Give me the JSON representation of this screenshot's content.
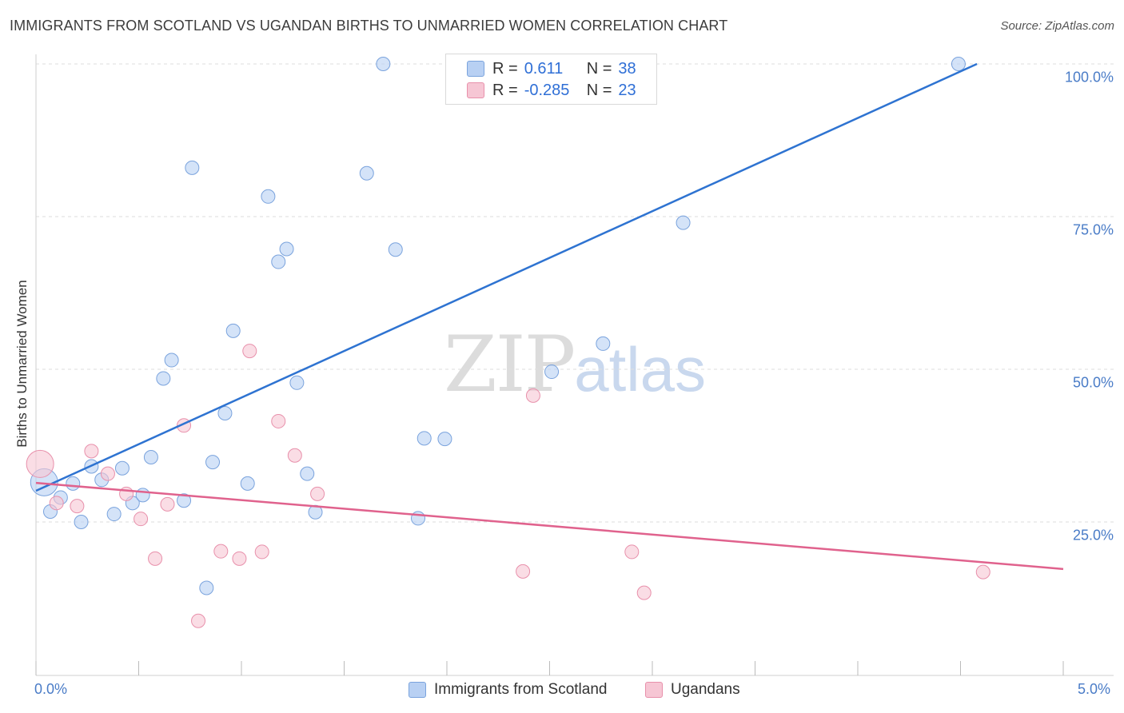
{
  "title": "IMMIGRANTS FROM SCOTLAND VS UGANDAN BIRTHS TO UNMARRIED WOMEN CORRELATION CHART",
  "source": "Source: ZipAtlas.com",
  "watermark": {
    "part1": "ZIP",
    "part2": "atlas"
  },
  "legend": {
    "rows": [
      {
        "r_label": "R =",
        "r_value": "0.611",
        "n_label": "N =",
        "n_value": "38"
      },
      {
        "r_label": "R =",
        "r_value": "-0.285",
        "n_label": "N =",
        "n_value": "23"
      }
    ]
  },
  "colors": {
    "blue_fill": "#b8d0f3",
    "blue_stroke": "#7aa3dd",
    "blue_line": "#2e73d1",
    "pink_fill": "#f6c6d4",
    "pink_stroke": "#e890ab",
    "pink_line": "#e0628d",
    "tick_text": "#4a7cc7",
    "grid": "#dedede"
  },
  "chart_data": {
    "type": "scatter",
    "title": "IMMIGRANTS FROM SCOTLAND VS UGANDAN BIRTHS TO UNMARRIED WOMEN CORRELATION CHART",
    "xlabel": "",
    "ylabel": "Births to Unmarried Women",
    "xlim": [
      0,
      5
    ],
    "ylim": [
      0,
      100
    ],
    "x_tick_labels": [
      "0.0%",
      "5.0%"
    ],
    "y_tick_labels": [
      "25.0%",
      "50.0%",
      "75.0%",
      "100.0%"
    ],
    "y_ticks": [
      25,
      50,
      75,
      100
    ],
    "grid": true,
    "legend_position": "bottom",
    "series": [
      {
        "name": "Immigrants from Scotland",
        "color": "#b8d0f3",
        "trend": {
          "x": [
            0,
            4.58
          ],
          "y": [
            30.1,
            100
          ]
        },
        "points": [
          {
            "x": 0.04,
            "y": 31.5,
            "big": true
          },
          {
            "x": 0.07,
            "y": 26.7
          },
          {
            "x": 0.12,
            "y": 29.0
          },
          {
            "x": 0.18,
            "y": 31.3
          },
          {
            "x": 0.22,
            "y": 25.0
          },
          {
            "x": 0.27,
            "y": 34.1
          },
          {
            "x": 0.32,
            "y": 31.9
          },
          {
            "x": 0.38,
            "y": 26.3
          },
          {
            "x": 0.42,
            "y": 33.8
          },
          {
            "x": 0.47,
            "y": 28.1
          },
          {
            "x": 0.52,
            "y": 29.4
          },
          {
            "x": 0.56,
            "y": 35.6
          },
          {
            "x": 0.62,
            "y": 48.5
          },
          {
            "x": 0.66,
            "y": 51.5
          },
          {
            "x": 0.72,
            "y": 28.5
          },
          {
            "x": 0.76,
            "y": 83.0
          },
          {
            "x": 0.83,
            "y": 14.2
          },
          {
            "x": 0.86,
            "y": 34.8
          },
          {
            "x": 0.92,
            "y": 42.8
          },
          {
            "x": 0.96,
            "y": 56.3
          },
          {
            "x": 1.03,
            "y": 31.3
          },
          {
            "x": 1.13,
            "y": 78.3
          },
          {
            "x": 1.18,
            "y": 67.6
          },
          {
            "x": 1.22,
            "y": 69.7
          },
          {
            "x": 1.27,
            "y": 47.8
          },
          {
            "x": 1.32,
            "y": 32.9
          },
          {
            "x": 1.36,
            "y": 26.6
          },
          {
            "x": 1.61,
            "y": 82.1
          },
          {
            "x": 1.69,
            "y": 100.0
          },
          {
            "x": 1.75,
            "y": 69.6
          },
          {
            "x": 1.86,
            "y": 25.6
          },
          {
            "x": 1.89,
            "y": 38.7
          },
          {
            "x": 1.99,
            "y": 38.6
          },
          {
            "x": 2.38,
            "y": 100.0
          },
          {
            "x": 2.51,
            "y": 49.6
          },
          {
            "x": 2.76,
            "y": 54.2
          },
          {
            "x": 3.15,
            "y": 74.0
          },
          {
            "x": 4.49,
            "y": 100.0
          }
        ]
      },
      {
        "name": "Ugandans",
        "color": "#f6c6d4",
        "trend": {
          "x": [
            0,
            5
          ],
          "y": [
            31.4,
            17.3
          ]
        },
        "points": [
          {
            "x": 0.02,
            "y": 34.5,
            "big": true
          },
          {
            "x": 0.1,
            "y": 28.1
          },
          {
            "x": 0.2,
            "y": 27.6
          },
          {
            "x": 0.27,
            "y": 36.6
          },
          {
            "x": 0.35,
            "y": 32.9
          },
          {
            "x": 0.44,
            "y": 29.6
          },
          {
            "x": 0.51,
            "y": 25.5
          },
          {
            "x": 0.58,
            "y": 19.0
          },
          {
            "x": 0.64,
            "y": 27.9
          },
          {
            "x": 0.72,
            "y": 40.8
          },
          {
            "x": 0.79,
            "y": 8.8
          },
          {
            "x": 0.9,
            "y": 20.2
          },
          {
            "x": 0.99,
            "y": 19.0
          },
          {
            "x": 1.04,
            "y": 53.0
          },
          {
            "x": 1.1,
            "y": 20.1
          },
          {
            "x": 1.18,
            "y": 41.5
          },
          {
            "x": 1.26,
            "y": 35.9
          },
          {
            "x": 1.37,
            "y": 29.6
          },
          {
            "x": 2.37,
            "y": 16.9
          },
          {
            "x": 2.42,
            "y": 45.7
          },
          {
            "x": 2.9,
            "y": 20.1
          },
          {
            "x": 2.96,
            "y": 13.4
          },
          {
            "x": 4.61,
            "y": 16.8
          }
        ]
      }
    ]
  }
}
